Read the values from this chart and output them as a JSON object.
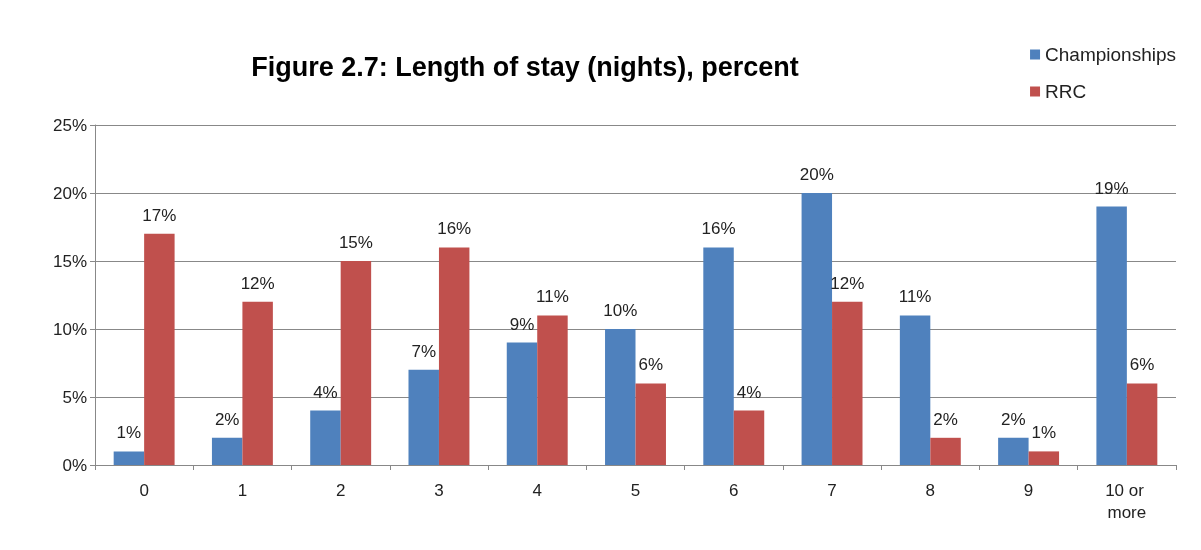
{
  "chart_data": {
    "type": "bar",
    "title": "Figure 2.7: Length of stay (nights), percent",
    "categories": [
      "0",
      "1",
      "2",
      "3",
      "4",
      "5",
      "6",
      "7",
      "8",
      "9",
      "10 or more"
    ],
    "series": [
      {
        "name": "Championships",
        "color": "#4f81bd",
        "values": [
          1,
          2,
          4,
          7,
          9,
          10,
          16,
          20,
          11,
          2,
          19
        ],
        "value_labels": [
          "1%",
          "2%",
          "4%",
          "7%",
          "9%",
          "10%",
          "16%",
          "20%",
          "11%",
          "2%",
          "19%"
        ]
      },
      {
        "name": "RRC",
        "color": "#c0504d",
        "values": [
          17,
          12,
          15,
          16,
          11,
          6,
          4,
          12,
          2,
          1,
          6
        ],
        "value_labels": [
          "17%",
          "12%",
          "15%",
          "16%",
          "11%",
          "6%",
          "4%",
          "12%",
          "2%",
          "1%",
          "6%"
        ]
      }
    ],
    "ylim": [
      0,
      25
    ],
    "yticks": [
      {
        "value": 0,
        "label": "0%"
      },
      {
        "value": 5,
        "label": "5%"
      },
      {
        "value": 10,
        "label": "10%"
      },
      {
        "value": 15,
        "label": "15%"
      },
      {
        "value": 20,
        "label": "20%"
      },
      {
        "value": 25,
        "label": "25%"
      }
    ],
    "grid": "y",
    "legend": "top right"
  }
}
